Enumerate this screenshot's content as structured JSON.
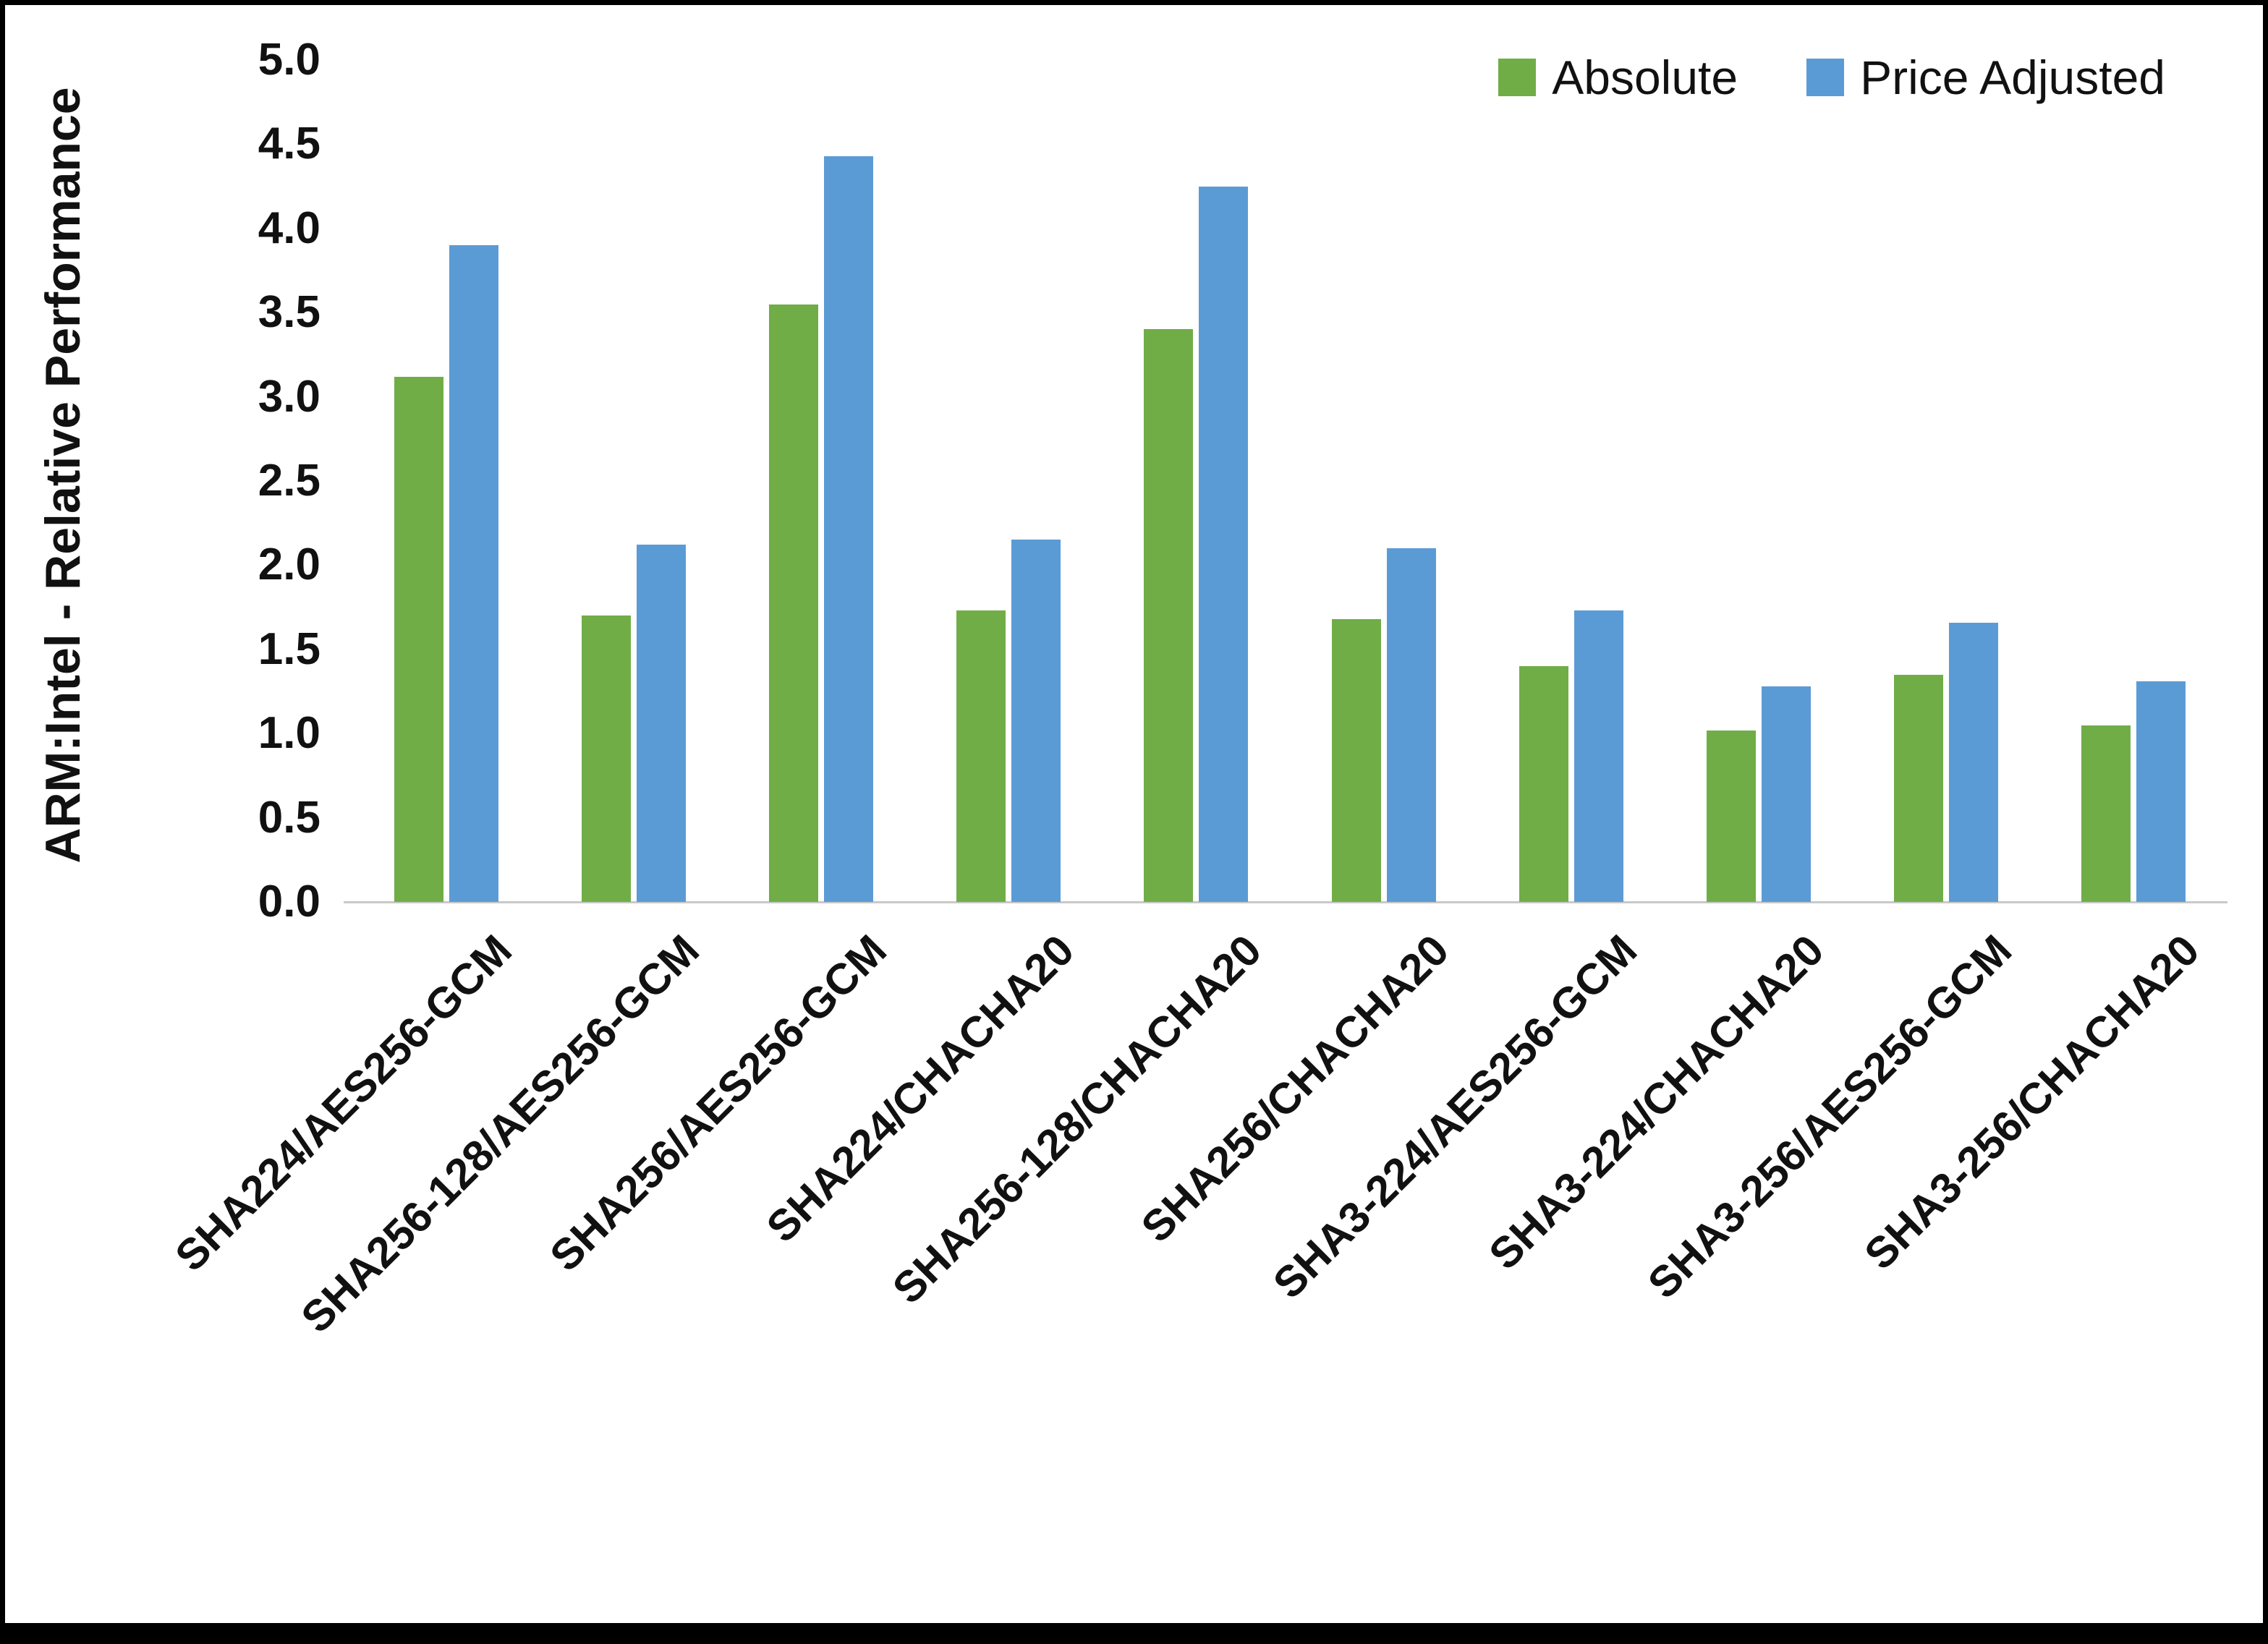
{
  "chart_data": {
    "type": "bar",
    "title": "",
    "xlabel": "",
    "ylabel": "ARM:Intel - Relative Performance",
    "ylim": [
      0,
      5
    ],
    "ytick_step": 0.5,
    "yticks": [
      "0.0",
      "0.5",
      "1.0",
      "1.5",
      "2.0",
      "2.5",
      "3.0",
      "3.5",
      "4.0",
      "4.5",
      "5.0"
    ],
    "grid": false,
    "legend_position": "top-right",
    "categories": [
      "SHA224/AES256-GCM",
      "SHA256-128/AES256-GCM",
      "SHA256/AES256-GCM",
      "SHA224/CHACHA20",
      "SHA256-128/CHACHA20",
      "SHA256/CHACHA20",
      "SHA3-224/AES256-GCM",
      "SHA3-224/CHACHA20",
      "SHA3-256/AES256-GCM",
      "SHA3-256/CHACHA20"
    ],
    "series": [
      {
        "name": "Absolute",
        "color": "#70AD47",
        "values": [
          3.12,
          1.7,
          3.55,
          1.73,
          3.4,
          1.68,
          1.4,
          1.02,
          1.35,
          1.05
        ]
      },
      {
        "name": "Price Adjusted",
        "color": "#5B9BD5",
        "values": [
          3.9,
          2.12,
          4.43,
          2.15,
          4.25,
          2.1,
          1.73,
          1.28,
          1.66,
          1.31
        ]
      }
    ]
  },
  "colors": {
    "absolute": "#70AD47",
    "price_adjusted": "#5B9BD5",
    "baseline": "#c9c9c9",
    "text": "#111111",
    "frame": "#000000"
  }
}
